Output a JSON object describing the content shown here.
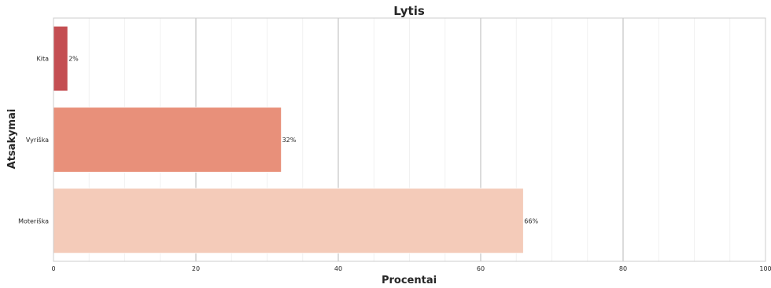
{
  "chart_data": {
    "type": "bar",
    "orientation": "horizontal",
    "title": "Lytis",
    "xlabel": "Procentai",
    "ylabel": "Atsakymai",
    "categories": [
      "Kita",
      "Vyriška",
      "Moteriška"
    ],
    "values": [
      2,
      32,
      66
    ],
    "data_labels": [
      "2%",
      "32%",
      "66%"
    ],
    "colors": [
      "#c44e52",
      "#e8907a",
      "#f4cbb9"
    ],
    "xlim": [
      0,
      100
    ],
    "xticks": [
      0,
      20,
      40,
      60,
      80,
      100
    ],
    "xtick_labels": [
      "0",
      "20",
      "40",
      "60",
      "80",
      "100"
    ],
    "grid": true,
    "legend": "none"
  }
}
